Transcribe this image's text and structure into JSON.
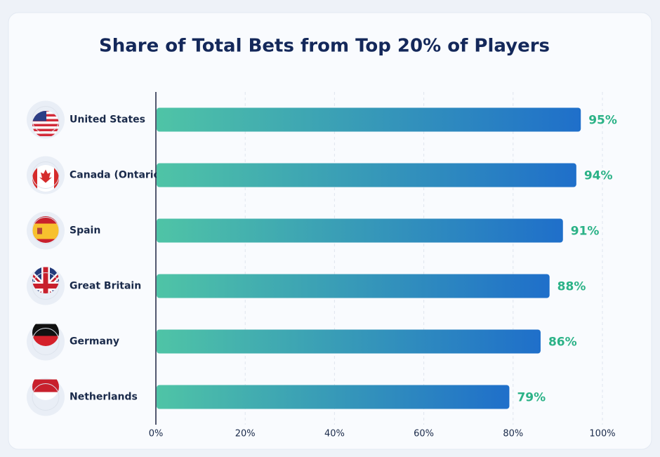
{
  "chart_data": {
    "type": "bar",
    "orientation": "horizontal",
    "title": "Share of Total Bets from Top 20% of Players",
    "categories": [
      "United States",
      "Canada (Ontario)",
      "Spain",
      "Great Britain",
      "Germany",
      "Netherlands"
    ],
    "values": [
      95,
      94,
      91,
      88,
      86,
      79
    ],
    "value_labels": [
      "95%",
      "94%",
      "91%",
      "88%",
      "86%",
      "79%"
    ],
    "color_start": "#4fc4a6",
    "color_end": "#1f6fca",
    "value_label_color": "#2bb287",
    "xlim": [
      0,
      100
    ],
    "xticks": [
      {
        "value": 0,
        "label": "0%"
      },
      {
        "value": 20,
        "label": "20%"
      },
      {
        "value": 40,
        "label": "40%"
      },
      {
        "value": 60,
        "label": "60%"
      },
      {
        "value": 80,
        "label": "80%"
      },
      {
        "value": 100,
        "label": "100%"
      }
    ],
    "grid": true
  }
}
